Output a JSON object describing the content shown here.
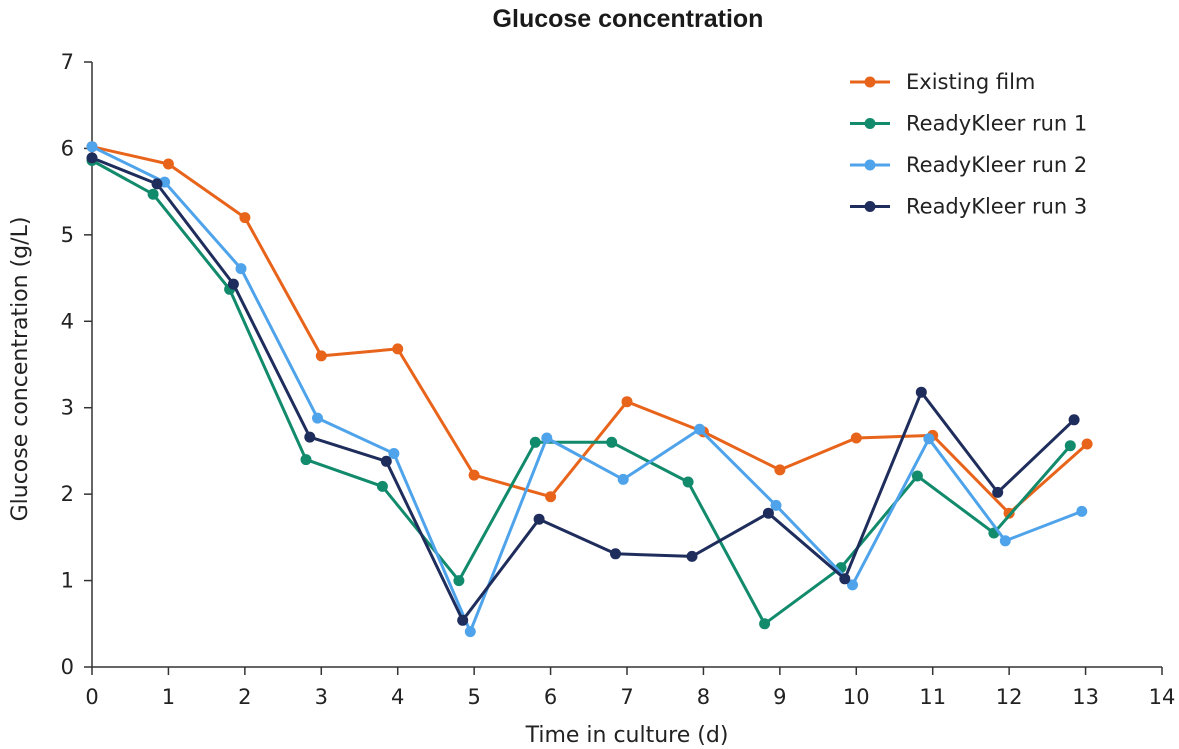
{
  "chart_data": {
    "type": "line",
    "title": "Glucose concentration",
    "xlabel": "Time in culture (d)",
    "ylabel": "Glucose concentration (g/L)",
    "xlim": [
      0,
      14
    ],
    "ylim": [
      0,
      7
    ],
    "xticks": [
      "0",
      "1",
      "2",
      "3",
      "4",
      "5",
      "6",
      "7",
      "8",
      "9",
      "10",
      "11",
      "12",
      "13",
      "14"
    ],
    "yticks": [
      "0",
      "1",
      "2",
      "3",
      "4",
      "5",
      "6",
      "7"
    ],
    "grid": false,
    "legend_position": "top-right",
    "series": [
      {
        "name": "Existing film",
        "color": "#e8641b",
        "points": [
          [
            0,
            6.02
          ],
          [
            1,
            5.82
          ],
          [
            2,
            5.2
          ],
          [
            3,
            3.6
          ],
          [
            4,
            3.68
          ],
          [
            5,
            2.22
          ],
          [
            6,
            1.97
          ],
          [
            7,
            3.07
          ],
          [
            8,
            2.72
          ],
          [
            9,
            2.28
          ],
          [
            10,
            2.65
          ],
          [
            11,
            2.68
          ],
          [
            12,
            1.78
          ],
          [
            13.02,
            2.58
          ]
        ]
      },
      {
        "name": "ReadyKleer run 1",
        "color": "#128a6c",
        "points": [
          [
            0,
            5.86
          ],
          [
            0.8,
            5.47
          ],
          [
            1.8,
            4.37
          ],
          [
            2.8,
            2.4
          ],
          [
            3.8,
            2.09
          ],
          [
            4.8,
            1.0
          ],
          [
            5.8,
            2.6
          ],
          [
            6.8,
            2.6
          ],
          [
            7.8,
            2.14
          ],
          [
            8.8,
            0.5
          ],
          [
            9.8,
            1.15
          ],
          [
            10.8,
            2.21
          ],
          [
            11.8,
            1.55
          ],
          [
            12.8,
            2.56
          ]
        ]
      },
      {
        "name": "ReadyKleer run 2",
        "color": "#4ea3ea",
        "points": [
          [
            0,
            6.02
          ],
          [
            0.95,
            5.61
          ],
          [
            1.95,
            4.61
          ],
          [
            2.95,
            2.88
          ],
          [
            3.95,
            2.47
          ],
          [
            4.95,
            0.41
          ],
          [
            5.95,
            2.65
          ],
          [
            6.95,
            2.17
          ],
          [
            7.95,
            2.75
          ],
          [
            8.95,
            1.87
          ],
          [
            9.95,
            0.95
          ],
          [
            10.95,
            2.64
          ],
          [
            11.95,
            1.46
          ],
          [
            12.95,
            1.8
          ]
        ]
      },
      {
        "name": "ReadyKleer run 3",
        "color": "#1f2d5c",
        "points": [
          [
            0,
            5.89
          ],
          [
            0.85,
            5.59
          ],
          [
            1.85,
            4.43
          ],
          [
            2.85,
            2.66
          ],
          [
            3.85,
            2.38
          ],
          [
            4.85,
            0.54
          ],
          [
            5.85,
            1.71
          ],
          [
            6.85,
            1.31
          ],
          [
            7.85,
            1.28
          ],
          [
            8.85,
            1.78
          ],
          [
            9.85,
            1.02
          ],
          [
            10.85,
            3.18
          ],
          [
            11.85,
            2.02
          ],
          [
            12.85,
            2.86
          ]
        ]
      }
    ]
  }
}
